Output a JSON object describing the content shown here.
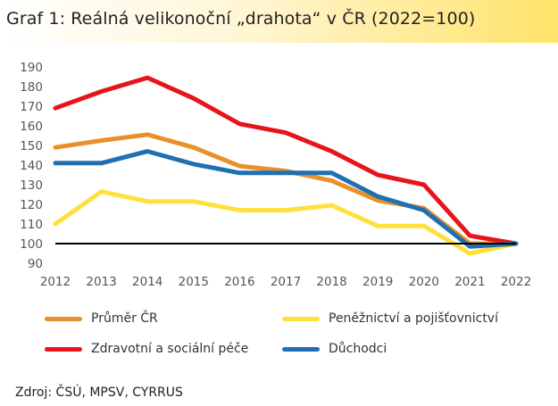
{
  "title": "Graf 1: Reálná velikonoční „drahota“ v ČR (2022=100)",
  "source": "Zdroj: ČSÚ, MPSV, CYRRUS",
  "chart_data": {
    "type": "line",
    "x": [
      "2012",
      "2013",
      "2014",
      "2015",
      "2016",
      "2017",
      "2018",
      "2019",
      "2020",
      "2021",
      "2022"
    ],
    "ylim": [
      90,
      190
    ],
    "yticks": [
      90,
      100,
      110,
      120,
      130,
      140,
      150,
      160,
      170,
      180,
      190
    ],
    "reference_line": 100,
    "grid": false,
    "legend_position": "bottom",
    "series": [
      {
        "name": "Průměr ČR",
        "color": "#E8902A",
        "values": [
          149,
          152.5,
          155.5,
          149,
          139.5,
          137,
          132,
          122,
          118,
          100,
          100
        ]
      },
      {
        "name": "Peněžnictví a pojišťovnictví",
        "color": "#FFE03C",
        "values": [
          110,
          126.5,
          121.5,
          121.5,
          117,
          117,
          119.5,
          109,
          109,
          95,
          100
        ]
      },
      {
        "name": "Zdravotní a sociální péče",
        "color": "#E8141C",
        "values": [
          169,
          177.5,
          184.5,
          174,
          161,
          156.5,
          147,
          135,
          130,
          104,
          100
        ]
      },
      {
        "name": "Důchodci",
        "color": "#1F6FB2",
        "values": [
          141,
          141,
          147,
          140.5,
          136,
          136,
          136,
          124,
          117,
          98.5,
          100
        ]
      }
    ]
  }
}
